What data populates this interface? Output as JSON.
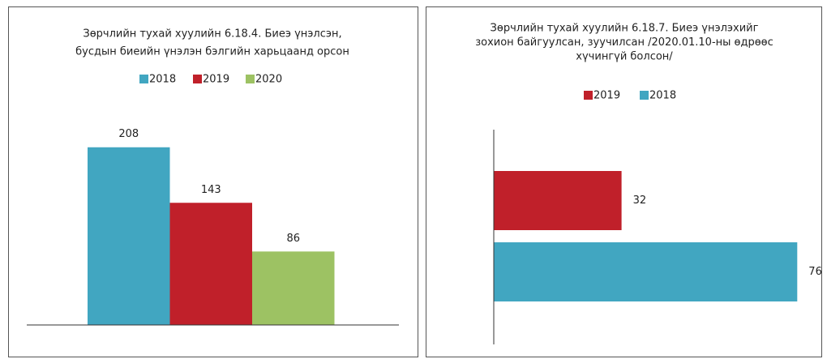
{
  "chart_data": [
    {
      "type": "bar",
      "title": [
        "Зөрчлийн тухай хуулийн 6.18.4. Биеэ үнэлсэн,",
        "бусдын биеийн үнэлэн бэлгийн харьцаанд орсон"
      ],
      "categories": [
        null
      ],
      "series": [
        {
          "name": "2018",
          "color": "#41a6c1",
          "values": [
            208
          ]
        },
        {
          "name": "2019",
          "color": "#c0202a",
          "values": [
            143
          ]
        },
        {
          "name": "2020",
          "color": "#9dc263",
          "values": [
            86
          ]
        }
      ],
      "ylim": [
        0,
        240
      ],
      "legend": "top"
    },
    {
      "type": "barh",
      "title": [
        "Зөрчлийн тухай хуулийн 6.18.7. Биеэ үнэлэхийг",
        "зохион байгуулсан, зуучилсан /2020.01.10-ны өдрөөс",
        "хүчингүй болсон/"
      ],
      "categories": [
        null
      ],
      "series": [
        {
          "name": "2019",
          "color": "#c0202a",
          "values": [
            32
          ]
        },
        {
          "name": "2018",
          "color": "#41a6c1",
          "values": [
            76
          ]
        }
      ],
      "xlim": [
        0,
        80
      ],
      "legend": "top"
    }
  ]
}
